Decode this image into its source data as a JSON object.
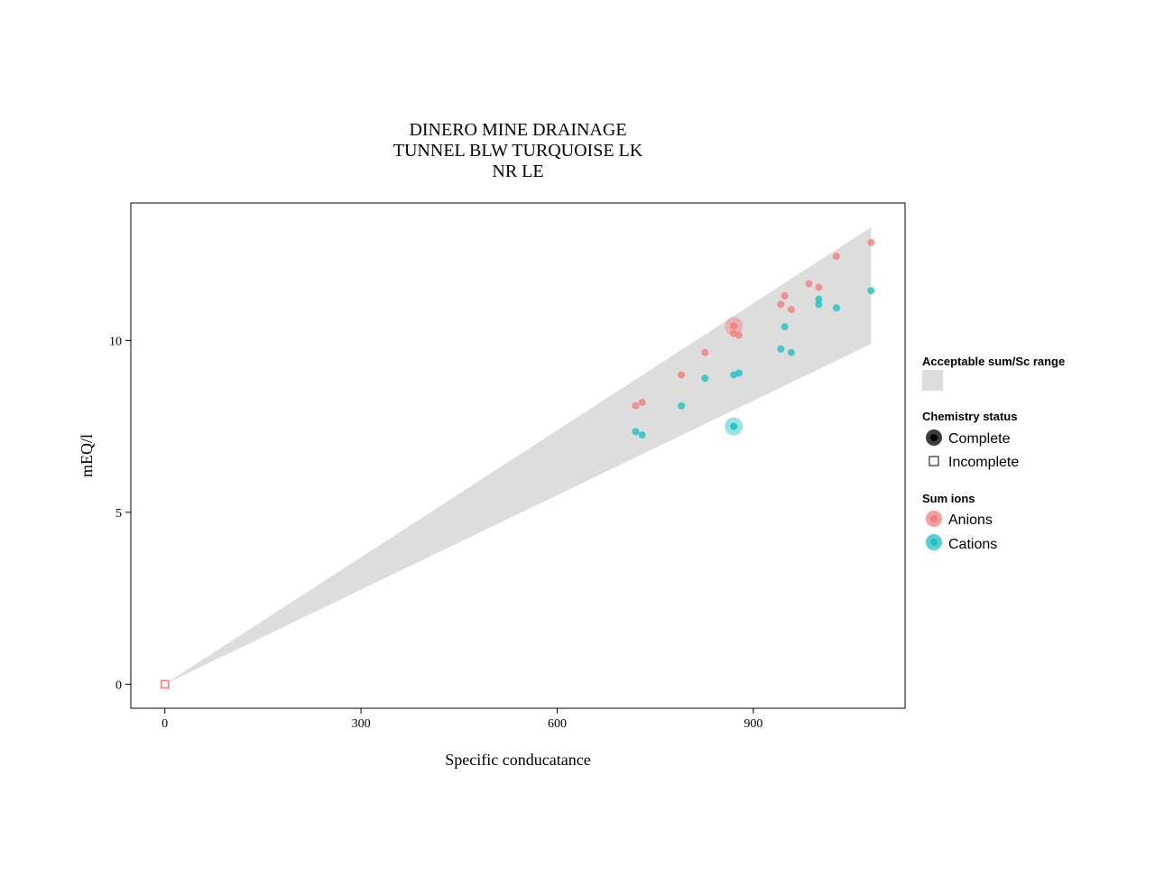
{
  "chart_data": {
    "type": "scatter",
    "title_lines": [
      "DINERO MINE DRAINAGE",
      "TUNNEL BLW TURQUOISE LK",
      "NR LE"
    ],
    "xlabel": "Specific conducatance",
    "ylabel": "mEQ/l",
    "xlim": [
      -52,
      1132
    ],
    "ylim": [
      -0.7,
      14
    ],
    "x_ticks": [
      0,
      300,
      600,
      900
    ],
    "y_ticks": [
      0,
      5,
      10
    ],
    "grid": false,
    "acceptable_range": {
      "x": [
        0,
        1080
      ],
      "upper": [
        0,
        13.3
      ],
      "lower": [
        0,
        9.9
      ],
      "color": "#dddddd"
    },
    "series": [
      {
        "name": "Anions",
        "color": "#f08080",
        "points": [
          {
            "x": 720,
            "y": 8.1
          },
          {
            "x": 730,
            "y": 8.2
          },
          {
            "x": 790,
            "y": 9.0
          },
          {
            "x": 826,
            "y": 9.65
          },
          {
            "x": 870,
            "y": 10.2
          },
          {
            "x": 878,
            "y": 10.15
          },
          {
            "x": 942,
            "y": 11.05
          },
          {
            "x": 948,
            "y": 11.3
          },
          {
            "x": 958,
            "y": 10.9
          },
          {
            "x": 985,
            "y": 11.65
          },
          {
            "x": 1000,
            "y": 11.55
          },
          {
            "x": 1027,
            "y": 12.45
          },
          {
            "x": 1080,
            "y": 12.85
          },
          {
            "x": 870,
            "y": 10.42,
            "highlight": true
          }
        ]
      },
      {
        "name": "Cations",
        "color": "#20c0c0",
        "points": [
          {
            "x": 720,
            "y": 7.35
          },
          {
            "x": 730,
            "y": 7.25
          },
          {
            "x": 790,
            "y": 8.1
          },
          {
            "x": 826,
            "y": 8.9
          },
          {
            "x": 870,
            "y": 9.0
          },
          {
            "x": 878,
            "y": 9.05
          },
          {
            "x": 942,
            "y": 9.75
          },
          {
            "x": 948,
            "y": 10.4
          },
          {
            "x": 958,
            "y": 9.65
          },
          {
            "x": 1000,
            "y": 11.05
          },
          {
            "x": 1000,
            "y": 11.2
          },
          {
            "x": 1027,
            "y": 10.95
          },
          {
            "x": 1080,
            "y": 11.45
          },
          {
            "x": 870,
            "y": 7.5,
            "highlight": true
          }
        ]
      }
    ],
    "incomplete_points": [
      {
        "x": 0,
        "y": 0
      }
    ],
    "legend": {
      "placement": "right",
      "range_title": "Acceptable sum/Sc range",
      "status_title": "Chemistry status",
      "status_items": [
        "Complete",
        "Incomplete"
      ],
      "ions_title": "Sum ions",
      "ion_items": [
        "Anions",
        "Cations"
      ]
    }
  }
}
